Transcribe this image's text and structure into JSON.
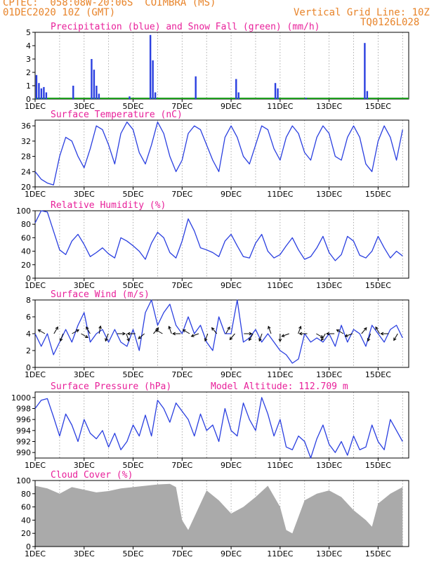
{
  "header": {
    "line1": "CPTEC:  058:08W-20:06S  COIMBRA (MS)",
    "line2_left": "01DEC2020 10Z (GMT)",
    "line2_right": "Vertical Grid Line: 10Z",
    "code": "TQ0126L028",
    "title_color": "#e8842a"
  },
  "colors": {
    "accent_title": "#e8209a",
    "series": "#2a3fe0",
    "snow": "#1ea01e",
    "cloud": "#aaaaaa"
  },
  "x_axis": {
    "ticks": [
      "1DEC",
      "3DEC",
      "5DEC",
      "7DEC",
      "9DEC",
      "11DEC",
      "13DEC",
      "15DEC"
    ],
    "day_range": [
      0,
      15
    ]
  },
  "chart_data": [
    {
      "type": "bar",
      "title": "Precipitation (blue) and Snow Fall (green) (mm/h)",
      "ylim": [
        0,
        5
      ],
      "yticks": [
        "0",
        "1",
        "2",
        "3",
        "4",
        "5"
      ],
      "grid": "vertical dotted",
      "series": [
        {
          "name": "Precipitation",
          "x": [
            0.05,
            0.15,
            0.25,
            0.35,
            0.45,
            1.55,
            2.3,
            2.4,
            2.5,
            2.6,
            3.85,
            4.7,
            4.8,
            4.9,
            6.55,
            8.2,
            8.3,
            9.8,
            9.9,
            11.05,
            13.45,
            13.55
          ],
          "values": [
            1.8,
            1.2,
            0.8,
            0.9,
            0.5,
            1.0,
            3.0,
            2.2,
            1.0,
            0.4,
            0.2,
            4.8,
            2.9,
            0.5,
            1.7,
            1.5,
            0.5,
            1.2,
            0.8,
            0.1,
            4.2,
            0.6
          ]
        },
        {
          "name": "Snow Fall",
          "values": [
            0
          ]
        }
      ]
    },
    {
      "type": "line",
      "title": "Surface Temperature (nC)",
      "ylim": [
        20,
        37.5
      ],
      "yticks": [
        "20",
        "24",
        "28",
        "32",
        "36"
      ],
      "grid": "vertical dotted",
      "x": [
        0,
        0.25,
        0.5,
        0.75,
        1.0,
        1.25,
        1.5,
        1.75,
        2.0,
        2.25,
        2.5,
        2.75,
        3.0,
        3.25,
        3.5,
        3.75,
        4.0,
        4.25,
        4.5,
        4.75,
        5.0,
        5.25,
        5.5,
        5.75,
        6.0,
        6.25,
        6.5,
        6.75,
        7.0,
        7.25,
        7.5,
        7.75,
        8.0,
        8.25,
        8.5,
        8.75,
        9.0,
        9.25,
        9.5,
        9.75,
        10.0,
        10.25,
        10.5,
        10.75,
        11.0,
        11.25,
        11.5,
        11.75,
        12.0,
        12.25,
        12.5,
        12.75,
        13.0,
        13.25,
        13.5,
        13.75,
        14.0,
        14.25,
        14.5,
        14.75,
        15.0
      ],
      "values": [
        24,
        22,
        21,
        20.5,
        28,
        33,
        32,
        28,
        25,
        30,
        36,
        35,
        31,
        26,
        34,
        37,
        35,
        29,
        26,
        31,
        37,
        34,
        28,
        24,
        27,
        34,
        36,
        35,
        31,
        27,
        24,
        33,
        36,
        33,
        28,
        26,
        31,
        36,
        35,
        30,
        27,
        33,
        36,
        34,
        29,
        27,
        33,
        36,
        34,
        28,
        27,
        33,
        36,
        33,
        26,
        24,
        32,
        36,
        33,
        27,
        35
      ]
    },
    {
      "type": "line",
      "title": "Relative Humidity (%)",
      "ylim": [
        0,
        100
      ],
      "yticks": [
        "0",
        "20",
        "40",
        "60",
        "80",
        "100"
      ],
      "grid": "vertical dotted",
      "x": [
        0,
        0.25,
        0.5,
        0.75,
        1.0,
        1.25,
        1.5,
        1.75,
        2.0,
        2.25,
        2.5,
        2.75,
        3.0,
        3.25,
        3.5,
        3.75,
        4.0,
        4.25,
        4.5,
        4.75,
        5.0,
        5.25,
        5.5,
        5.75,
        6.0,
        6.25,
        6.5,
        6.75,
        7.0,
        7.25,
        7.5,
        7.75,
        8.0,
        8.25,
        8.5,
        8.75,
        9.0,
        9.25,
        9.5,
        9.75,
        10.0,
        10.25,
        10.5,
        10.75,
        11.0,
        11.25,
        11.5,
        11.75,
        12.0,
        12.25,
        12.5,
        12.75,
        13.0,
        13.25,
        13.5,
        13.75,
        14.0,
        14.25,
        14.5,
        14.75,
        15.0
      ],
      "values": [
        82,
        100,
        98,
        70,
        42,
        35,
        55,
        65,
        50,
        32,
        38,
        45,
        36,
        30,
        60,
        55,
        48,
        40,
        28,
        52,
        68,
        60,
        38,
        30,
        55,
        88,
        70,
        45,
        42,
        38,
        32,
        55,
        65,
        48,
        32,
        30,
        52,
        65,
        40,
        30,
        35,
        48,
        60,
        42,
        28,
        32,
        45,
        62,
        38,
        26,
        35,
        62,
        55,
        34,
        30,
        40,
        62,
        45,
        30,
        40,
        33
      ]
    },
    {
      "type": "line",
      "title": "Surface Wind (m/s)",
      "ylim": [
        0,
        8
      ],
      "yticks": [
        "0",
        "2",
        "4",
        "6",
        "8"
      ],
      "grid": "vertical dotted",
      "x": [
        0,
        0.25,
        0.5,
        0.75,
        1.0,
        1.25,
        1.5,
        1.75,
        2.0,
        2.25,
        2.5,
        2.75,
        3.0,
        3.25,
        3.5,
        3.75,
        4.0,
        4.25,
        4.5,
        4.75,
        5.0,
        5.25,
        5.5,
        5.75,
        6.0,
        6.25,
        6.5,
        6.75,
        7.0,
        7.25,
        7.5,
        7.75,
        8.0,
        8.25,
        8.5,
        8.75,
        9.0,
        9.25,
        9.5,
        9.75,
        10.0,
        10.25,
        10.5,
        10.75,
        11.0,
        11.25,
        11.5,
        11.75,
        12.0,
        12.25,
        12.5,
        12.75,
        13.0,
        13.25,
        13.5,
        13.75,
        14.0,
        14.25,
        14.5,
        14.75,
        15.0
      ],
      "values": [
        4,
        2.5,
        4,
        1.5,
        3,
        4.5,
        3,
        5,
        6.5,
        3,
        4,
        4.5,
        3,
        4.5,
        3,
        2.5,
        4.5,
        2,
        6.5,
        8,
        5,
        6.5,
        7.5,
        5,
        4,
        6,
        4,
        5,
        3,
        2,
        6,
        4,
        4,
        8,
        3,
        3.5,
        4.5,
        3,
        4,
        3,
        2,
        1.5,
        0.5,
        1,
        4,
        3,
        3.5,
        3,
        4,
        2.5,
        5,
        3,
        4.5,
        4,
        2.5,
        5,
        4,
        3,
        4.5,
        5,
        3.5
      ],
      "arrows_deg": [
        300,
        30,
        200,
        60,
        120,
        330,
        10,
        200,
        90,
        160,
        270,
        230,
        40,
        300,
        340,
        270,
        300,
        250,
        200,
        320,
        30,
        220,
        90,
        210,
        200,
        340,
        180,
        250,
        20,
        270,
        120,
        210,
        270,
        300,
        250,
        40,
        200,
        330,
        270,
        210
      ]
    },
    {
      "type": "line",
      "title": "Surface Pressure (hPa)",
      "annotation": "Model Altitude: 112.709  m",
      "ylim": [
        989,
        1001
      ],
      "yticks": [
        "990",
        "992",
        "994",
        "996",
        "998",
        "1000"
      ],
      "grid": "vertical dotted",
      "x": [
        0,
        0.25,
        0.5,
        0.75,
        1.0,
        1.25,
        1.5,
        1.75,
        2.0,
        2.25,
        2.5,
        2.75,
        3.0,
        3.25,
        3.5,
        3.75,
        4.0,
        4.25,
        4.5,
        4.75,
        5.0,
        5.25,
        5.5,
        5.75,
        6.0,
        6.25,
        6.5,
        6.75,
        7.0,
        7.25,
        7.5,
        7.75,
        8.0,
        8.25,
        8.5,
        8.75,
        9.0,
        9.25,
        9.5,
        9.75,
        10.0,
        10.25,
        10.5,
        10.75,
        11.0,
        11.25,
        11.5,
        11.75,
        12.0,
        12.25,
        12.5,
        12.75,
        13.0,
        13.25,
        13.5,
        13.75,
        14.0,
        14.25,
        14.5,
        14.75,
        15.0
      ],
      "values": [
        998,
        999.5,
        999.8,
        996.5,
        993,
        997,
        995,
        992,
        996,
        993.5,
        992.5,
        994,
        991,
        993.5,
        990.5,
        992,
        995,
        993,
        996.8,
        993,
        999.5,
        998,
        995.5,
        999,
        997.5,
        996,
        993,
        997,
        994,
        995,
        992,
        998,
        994,
        993,
        999,
        996,
        994,
        1000,
        997,
        993,
        996,
        991,
        990.5,
        993,
        992,
        989,
        992.5,
        995,
        991.5,
        990,
        992,
        989.5,
        993,
        990.5,
        991,
        995,
        992,
        990.5,
        996,
        994,
        992
      ]
    },
    {
      "type": "area",
      "title": "Cloud Cover (%)",
      "ylim": [
        0,
        100
      ],
      "yticks": [
        "0",
        "20",
        "40",
        "60",
        "80",
        "100"
      ],
      "grid": "vertical dotted",
      "x": [
        0,
        0.5,
        1.0,
        1.5,
        2.0,
        2.5,
        3.0,
        3.5,
        4.0,
        4.5,
        5.0,
        5.5,
        5.75,
        6.0,
        6.25,
        6.5,
        6.75,
        7.0,
        7.5,
        8.0,
        8.5,
        9.0,
        9.5,
        10.0,
        10.25,
        10.5,
        10.75,
        11.0,
        11.5,
        12.0,
        12.5,
        13.0,
        13.5,
        13.75,
        14.0,
        14.5,
        15.0
      ],
      "values": [
        92,
        88,
        80,
        90,
        86,
        82,
        84,
        88,
        90,
        92,
        94,
        95,
        90,
        40,
        25,
        45,
        65,
        85,
        70,
        50,
        60,
        75,
        92,
        60,
        25,
        20,
        45,
        70,
        80,
        85,
        75,
        55,
        40,
        30,
        65,
        80,
        90
      ]
    }
  ]
}
